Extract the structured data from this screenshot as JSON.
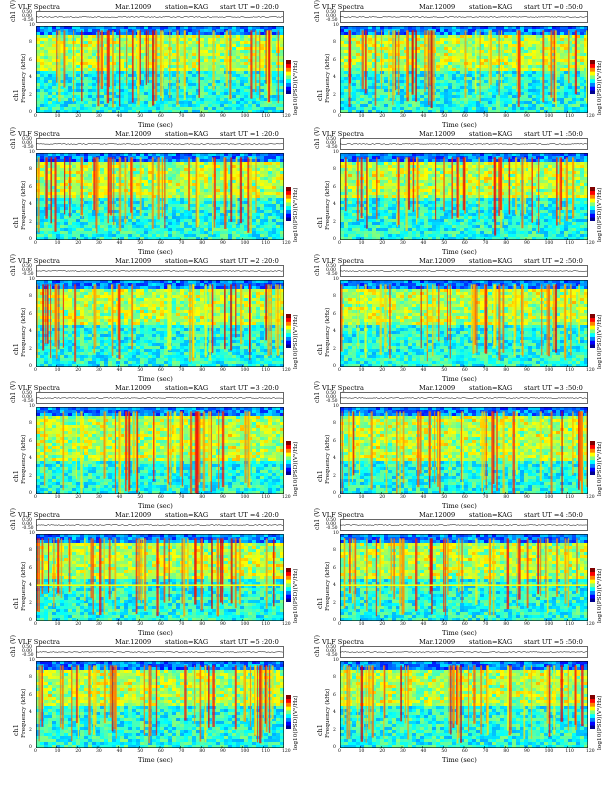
{
  "chart_data": [
    {
      "type": "heatmap",
      "title": "VLF Spectra",
      "date": "Mar.12009",
      "station": "station=KAG",
      "start_ut": "start  UT =0 :20:0",
      "channel": "ch1",
      "xlabel": "Time  (sec)",
      "ylabel": "Frequency  (kHz)",
      "wave_label": "ch1 (V)",
      "colorbar_label": "log10(PSD)(V²/Hz)",
      "xlim": [
        0,
        120
      ],
      "ylim": [
        0,
        10
      ],
      "x_ticks": [
        "0",
        "10",
        "20",
        "30",
        "40",
        "50",
        "60",
        "70",
        "80",
        "90",
        "100",
        "110",
        "120"
      ],
      "y_ticks": [
        "0",
        "2",
        "4",
        "6",
        "8",
        "10"
      ],
      "wave_ticks": [
        "0.50",
        "0.00",
        "-0.50"
      ],
      "band_khz": [
        5,
        9
      ],
      "horizontal_lines_khz": []
    },
    {
      "type": "heatmap",
      "title": "VLF Spectra",
      "date": "Mar.12009",
      "station": "station=KAG",
      "start_ut": "start  UT =0 :50:0",
      "channel": "ch1",
      "xlabel": "Time  (sec)",
      "ylabel": "Frequency  (kHz)",
      "wave_label": "ch1 (V)",
      "colorbar_label": "log10(PSD)(V²/Hz)",
      "xlim": [
        0,
        120
      ],
      "ylim": [
        0,
        10
      ],
      "x_ticks": [
        "0",
        "10",
        "20",
        "30",
        "40",
        "50",
        "60",
        "70",
        "80",
        "90",
        "100",
        "110",
        "120"
      ],
      "y_ticks": [
        "0",
        "2",
        "4",
        "6",
        "8",
        "10"
      ],
      "wave_ticks": [
        "0.50",
        "0.00",
        "-0.50"
      ],
      "band_khz": [
        5,
        9
      ],
      "horizontal_lines_khz": []
    },
    {
      "type": "heatmap",
      "title": "VLF Spectra",
      "date": "Mar.12009",
      "station": "station=KAG",
      "start_ut": "start  UT =1 :20:0",
      "channel": "ch1",
      "xlabel": "Time  (sec)",
      "ylabel": "Frequency  (kHz)",
      "wave_label": "ch1 (V)",
      "colorbar_label": "log10(PSD)(V²/Hz)",
      "xlim": [
        0,
        120
      ],
      "ylim": [
        0,
        10
      ],
      "x_ticks": [
        "0",
        "10",
        "20",
        "30",
        "40",
        "50",
        "60",
        "70",
        "80",
        "90",
        "100",
        "110",
        "120"
      ],
      "y_ticks": [
        "0",
        "2",
        "4",
        "6",
        "8",
        "10"
      ],
      "wave_ticks": [
        "0.50",
        "0.00",
        "-0.50"
      ],
      "band_khz": [
        5,
        9
      ],
      "horizontal_lines_khz": []
    },
    {
      "type": "heatmap",
      "title": "VLF Spectra",
      "date": "Mar.12009",
      "station": "station=KAG",
      "start_ut": "start  UT =1 :50:0",
      "channel": "ch1",
      "xlabel": "Time  (sec)",
      "ylabel": "Frequency  (kHz)",
      "wave_label": "ch1 (V)",
      "colorbar_label": "log10(PSD)(V²/Hz)",
      "xlim": [
        0,
        120
      ],
      "ylim": [
        0,
        10
      ],
      "x_ticks": [
        "0",
        "10",
        "20",
        "30",
        "40",
        "50",
        "60",
        "70",
        "80",
        "90",
        "100",
        "110",
        "120"
      ],
      "y_ticks": [
        "0",
        "2",
        "4",
        "6",
        "8",
        "10"
      ],
      "wave_ticks": [
        "0.50",
        "0.00",
        "-0.50"
      ],
      "band_khz": [
        5,
        9
      ],
      "horizontal_lines_khz": []
    },
    {
      "type": "heatmap",
      "title": "VLF Spectra",
      "date": "Mar.12009",
      "station": "station=KAG",
      "start_ut": "start  UT =2 :20:0",
      "channel": "ch1",
      "xlabel": "Time  (sec)",
      "ylabel": "Frequency  (kHz)",
      "wave_label": "ch1 (V)",
      "colorbar_label": "log10(PSD)(V²/Hz)",
      "xlim": [
        0,
        120
      ],
      "ylim": [
        0,
        10
      ],
      "x_ticks": [
        "0",
        "10",
        "20",
        "30",
        "40",
        "50",
        "60",
        "70",
        "80",
        "90",
        "100",
        "110",
        "120"
      ],
      "y_ticks": [
        "0",
        "2",
        "4",
        "6",
        "8",
        "10"
      ],
      "wave_ticks": [
        "0.50",
        "0.00",
        "-0.50"
      ],
      "band_khz": [
        5,
        9
      ],
      "horizontal_lines_khz": []
    },
    {
      "type": "heatmap",
      "title": "VLF Spectra",
      "date": "Mar.12009",
      "station": "station=KAG",
      "start_ut": "start  UT =2 :50:0",
      "channel": "ch1",
      "xlabel": "Time  (sec)",
      "ylabel": "Frequency  (kHz)",
      "wave_label": "ch1 (V)",
      "colorbar_label": "log10(PSD)(V²/Hz)",
      "xlim": [
        0,
        120
      ],
      "ylim": [
        0,
        10
      ],
      "x_ticks": [
        "0",
        "10",
        "20",
        "30",
        "40",
        "50",
        "60",
        "70",
        "80",
        "90",
        "100",
        "110",
        "120"
      ],
      "y_ticks": [
        "0",
        "2",
        "4",
        "6",
        "8",
        "10"
      ],
      "wave_ticks": [
        "0.50",
        "0.00",
        "-0.50"
      ],
      "band_khz": [
        5,
        9
      ],
      "horizontal_lines_khz": []
    },
    {
      "type": "heatmap",
      "title": "VLF Spectra",
      "date": "Mar.12009",
      "station": "station=KAG",
      "start_ut": "start  UT =3 :20:0",
      "channel": "ch1",
      "xlabel": "Time  (sec)",
      "ylabel": "Frequency  (kHz)",
      "wave_label": "ch1 (V)",
      "colorbar_label": "log10(PSD)(V²/Hz)",
      "xlim": [
        0,
        120
      ],
      "ylim": [
        0,
        10
      ],
      "x_ticks": [
        "0",
        "10",
        "20",
        "30",
        "40",
        "50",
        "60",
        "70",
        "80",
        "90",
        "100",
        "110",
        "120"
      ],
      "y_ticks": [
        "0",
        "2",
        "4",
        "6",
        "8",
        "10"
      ],
      "wave_ticks": [
        "0.50",
        "0.00",
        "-0.50"
      ],
      "band_khz": [
        4,
        9
      ],
      "horizontal_lines_khz": []
    },
    {
      "type": "heatmap",
      "title": "VLF Spectra",
      "date": "Mar.12009",
      "station": "station=KAG",
      "start_ut": "start  UT =3 :50:0",
      "channel": "ch1",
      "xlabel": "Time  (sec)",
      "ylabel": "Frequency  (kHz)",
      "wave_label": "ch1 (V)",
      "colorbar_label": "log10(PSD)(V²/Hz)",
      "xlim": [
        0,
        120
      ],
      "ylim": [
        0,
        10
      ],
      "x_ticks": [
        "0",
        "10",
        "20",
        "30",
        "40",
        "50",
        "60",
        "70",
        "80",
        "90",
        "100",
        "110",
        "120"
      ],
      "y_ticks": [
        "0",
        "2",
        "4",
        "6",
        "8",
        "10"
      ],
      "wave_ticks": [
        "0.50",
        "0.00",
        "-0.50"
      ],
      "band_khz": [
        4,
        9
      ],
      "horizontal_lines_khz": []
    },
    {
      "type": "heatmap",
      "title": "VLF Spectra",
      "date": "Mar.12009",
      "station": "station=KAG",
      "start_ut": "start  UT =4 :20:0",
      "channel": "ch1",
      "xlabel": "Time  (sec)",
      "ylabel": "Frequency  (kHz)",
      "wave_label": "ch1 (V)",
      "colorbar_label": "log10(PSD)(V²/Hz)",
      "xlim": [
        0,
        120
      ],
      "ylim": [
        0,
        10
      ],
      "x_ticks": [
        "0",
        "10",
        "20",
        "30",
        "40",
        "50",
        "60",
        "70",
        "80",
        "90",
        "100",
        "110",
        "120"
      ],
      "y_ticks": [
        "0",
        "2",
        "4",
        "6",
        "8",
        "10"
      ],
      "wave_ticks": [
        "0.50",
        "0.00",
        "-0.50"
      ],
      "band_khz": [
        5,
        9
      ],
      "horizontal_lines_khz": [
        4.2
      ]
    },
    {
      "type": "heatmap",
      "title": "VLF Spectra",
      "date": "Mar.12009",
      "station": "station=KAG",
      "start_ut": "start  UT =4 :50:0",
      "channel": "ch1",
      "xlabel": "Time  (sec)",
      "ylabel": "Frequency  (kHz)",
      "wave_label": "ch1 (V)",
      "colorbar_label": "log10(PSD)(V²/Hz)",
      "xlim": [
        0,
        120
      ],
      "ylim": [
        0,
        10
      ],
      "x_ticks": [
        "0",
        "10",
        "20",
        "30",
        "40",
        "50",
        "60",
        "70",
        "80",
        "90",
        "100",
        "110",
        "120"
      ],
      "y_ticks": [
        "0",
        "2",
        "4",
        "6",
        "8",
        "10"
      ],
      "wave_ticks": [
        "0.50",
        "0.00",
        "-0.50"
      ],
      "band_khz": [
        5,
        9
      ],
      "horizontal_lines_khz": [
        4.2
      ]
    },
    {
      "type": "heatmap",
      "title": "VLF Spectra",
      "date": "Mar.12009",
      "station": "station=KAG",
      "start_ut": "start  UT =5 :20:0",
      "channel": "ch1",
      "xlabel": "Time  (sec)",
      "ylabel": "Frequency  (kHz)",
      "wave_label": "ch1 (V)",
      "colorbar_label": "log10(PSD)(V²/Hz)",
      "xlim": [
        0,
        120
      ],
      "ylim": [
        0,
        10
      ],
      "x_ticks": [
        "0",
        "10",
        "20",
        "30",
        "40",
        "50",
        "60",
        "70",
        "80",
        "90",
        "100",
        "110",
        "120"
      ],
      "y_ticks": [
        "0",
        "2",
        "4",
        "6",
        "8",
        "10"
      ],
      "wave_ticks": [
        "0.50",
        "0.00",
        "-0.50"
      ],
      "band_khz": [
        5,
        9
      ],
      "horizontal_lines_khz": []
    },
    {
      "type": "heatmap",
      "title": "VLF Spectra",
      "date": "Mar.12009",
      "station": "station=KAG",
      "start_ut": "start  UT =5 :50:0",
      "channel": "ch1",
      "xlabel": "Time  (sec)",
      "ylabel": "Frequency  (kHz)",
      "wave_label": "ch1 (V)",
      "colorbar_label": "log10(PSD)(V²/Hz)",
      "xlim": [
        0,
        120
      ],
      "ylim": [
        0,
        10
      ],
      "x_ticks": [
        "0",
        "10",
        "20",
        "30",
        "40",
        "50",
        "60",
        "70",
        "80",
        "90",
        "100",
        "110",
        "120"
      ],
      "y_ticks": [
        "0",
        "2",
        "4",
        "6",
        "8",
        "10"
      ],
      "wave_ticks": [
        "0.50",
        "0.00",
        "-0.50"
      ],
      "band_khz": [
        5,
        9
      ],
      "horizontal_lines_khz": []
    }
  ],
  "colormap": [
    "#00008f",
    "#0000ff",
    "#0080ff",
    "#00ffff",
    "#80ff80",
    "#ffff00",
    "#ff8000",
    "#ff0000",
    "#800000"
  ]
}
